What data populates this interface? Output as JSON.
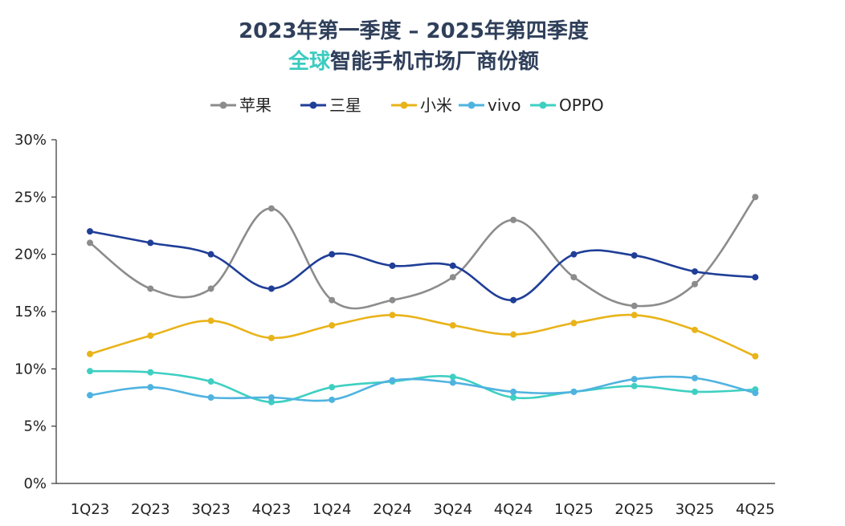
{
  "chart_data": {
    "type": "line",
    "title_line1": "2023年第一季度 – 2025年第四季度",
    "title_line2_accent": "全球",
    "title_line2_rest": "智能手机市场厂商份额",
    "categories": [
      "1Q23",
      "2Q23",
      "3Q23",
      "4Q23",
      "1Q24",
      "2Q24",
      "3Q24",
      "4Q24",
      "1Q25",
      "2Q25",
      "3Q25",
      "4Q25"
    ],
    "ylim": [
      0,
      30
    ],
    "yticks": [
      0,
      5,
      10,
      15,
      20,
      25,
      30
    ],
    "ytick_labels": [
      "0%",
      "5%",
      "10%",
      "15%",
      "20%",
      "25%",
      "30%"
    ],
    "grid": false,
    "legend_position": "top-center",
    "series": [
      {
        "name": "苹果",
        "color": "#8c8c8c",
        "values": [
          21,
          17,
          17,
          24,
          16,
          16,
          18,
          23,
          18,
          15.5,
          17.4,
          25
        ]
      },
      {
        "name": "三星",
        "color": "#1f3e97",
        "values": [
          22,
          21,
          20,
          17,
          20,
          19,
          19,
          16,
          20,
          19.9,
          18.5,
          18
        ]
      },
      {
        "name": "小米",
        "color": "#e9b31a",
        "values": [
          11.3,
          12.9,
          14.2,
          12.7,
          13.8,
          14.7,
          13.8,
          13,
          14,
          14.7,
          13.4,
          11.1
        ]
      },
      {
        "name": "vivo",
        "color": "#4fb3e0",
        "values": [
          7.7,
          8.4,
          7.5,
          7.5,
          7.3,
          9,
          8.8,
          8,
          8,
          9.1,
          9.2,
          7.9
        ]
      },
      {
        "name": "OPPO",
        "color": "#3fcfc2",
        "values": [
          9.8,
          9.7,
          8.9,
          7.1,
          8.4,
          8.9,
          9.3,
          7.5,
          8,
          8.5,
          8,
          8.2
        ]
      }
    ]
  }
}
